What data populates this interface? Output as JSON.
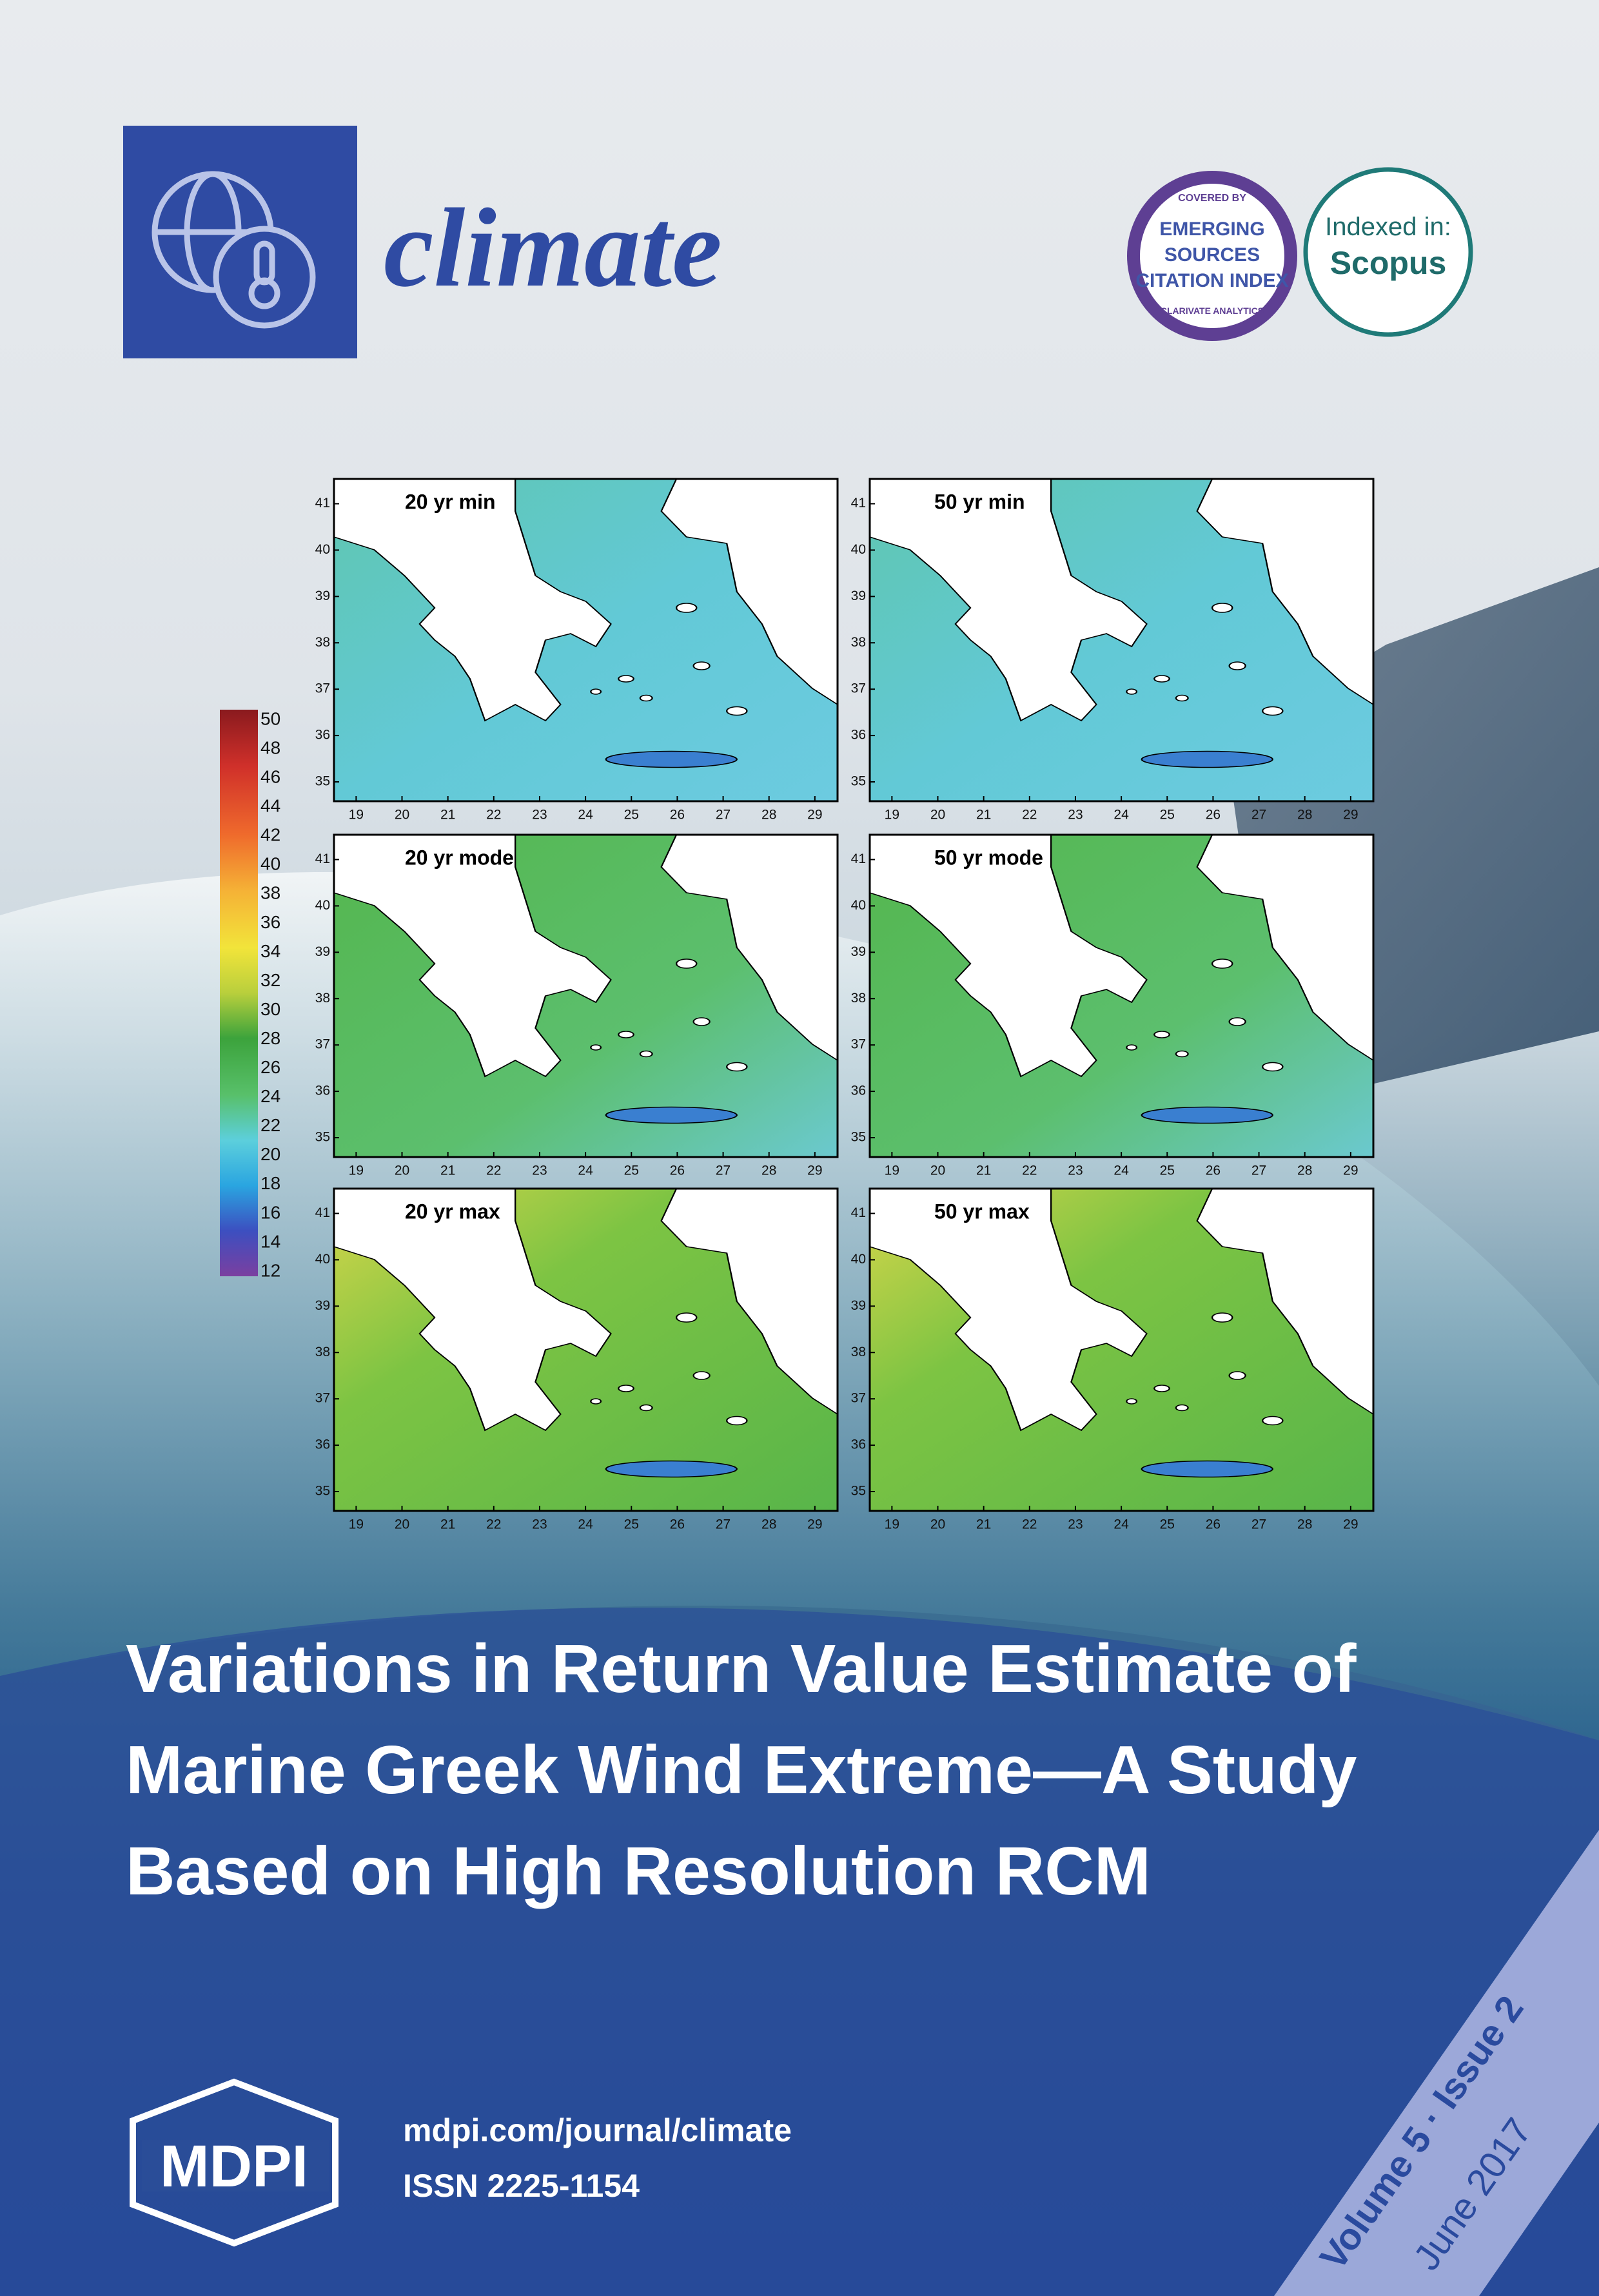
{
  "header": {
    "journal": "climate",
    "esci": {
      "top": "COVERED BY",
      "lines": [
        "EMERGING",
        "SOURCES",
        "CITATION INDEX"
      ],
      "bottom": "CLARIVATE ANALYTICS"
    },
    "scopus": {
      "line1": "Indexed in:",
      "line2": "Scopus"
    }
  },
  "figure": {
    "panels": [
      {
        "label": "20 yr min"
      },
      {
        "label": "50 yr min"
      },
      {
        "label": "20 yr mode"
      },
      {
        "label": "50 yr mode"
      },
      {
        "label": "20 yr max"
      },
      {
        "label": "50 yr max"
      }
    ],
    "lat_ticks": [
      35,
      36,
      37,
      38,
      39,
      40,
      41
    ],
    "lon_ticks": [
      19,
      20,
      21,
      22,
      23,
      24,
      25,
      26,
      27,
      28,
      29
    ],
    "colorbar_ticks": [
      12,
      14,
      16,
      18,
      20,
      22,
      24,
      26,
      28,
      30,
      32,
      34,
      36,
      38,
      40,
      42,
      44,
      46,
      48,
      50
    ]
  },
  "title": [
    "Variations in Return Value Estimate of",
    "Marine Greek Wind Extreme—A Study",
    "Based on High Resolution RCM"
  ],
  "footer": {
    "publisher": "MDPI",
    "url": "mdpi.com/journal/climate",
    "issn": "ISSN 2225-1154",
    "volume": "Volume 5 · Issue 2",
    "date": "June 2017"
  }
}
